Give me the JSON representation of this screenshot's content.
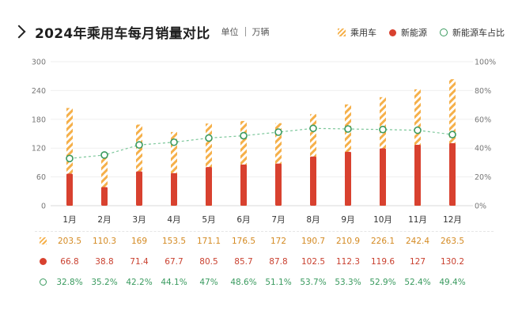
{
  "header": {
    "title": "2024年乘用车每月销量对比",
    "unit_label": "单位",
    "unit_value": "万辆"
  },
  "legend": {
    "total": "乘用车",
    "nev": "新能源",
    "share": "新能源车占比"
  },
  "colors": {
    "total": "#f5b04a",
    "nev": "#d8412f",
    "share": "#3a9a5f"
  },
  "chart_data": {
    "type": "bar",
    "categories": [
      "1月",
      "2月",
      "3月",
      "4月",
      "5月",
      "6月",
      "7月",
      "8月",
      "9月",
      "10月",
      "11月",
      "12月"
    ],
    "series": [
      {
        "name": "乘用车",
        "values": [
          203.5,
          110.3,
          169,
          153.5,
          171.1,
          176.5,
          172,
          190.7,
          210.9,
          226.1,
          242.4,
          263.5
        ]
      },
      {
        "name": "新能源",
        "values": [
          66.8,
          38.8,
          71.4,
          67.7,
          80.5,
          85.7,
          87.8,
          102.5,
          112.3,
          119.6,
          127,
          130.2
        ]
      },
      {
        "name": "新能源车占比",
        "values": [
          32.8,
          35.2,
          42.2,
          44.1,
          47,
          48.6,
          51.1,
          53.7,
          53.3,
          52.9,
          52.4,
          49.4
        ],
        "axis": "right"
      }
    ],
    "table": {
      "total": [
        "203.5",
        "110.3",
        "169",
        "153.5",
        "171.1",
        "176.5",
        "172",
        "190.7",
        "210.9",
        "226.1",
        "242.4",
        "263.5"
      ],
      "nev": [
        "66.8",
        "38.8",
        "71.4",
        "67.7",
        "80.5",
        "85.7",
        "87.8",
        "102.5",
        "112.3",
        "119.6",
        "127",
        "130.2"
      ],
      "share": [
        "32.8%",
        "35.2%",
        "42.2%",
        "44.1%",
        "47%",
        "48.6%",
        "51.1%",
        "53.7%",
        "53.3%",
        "52.9%",
        "52.4%",
        "49.4%"
      ]
    },
    "ylim": [
      0,
      300
    ],
    "y_ticks": [
      "0",
      "60",
      "120",
      "180",
      "240",
      "300"
    ],
    "y2lim": [
      0,
      100
    ],
    "y2_ticks": [
      "0%",
      "20%",
      "40%",
      "60%",
      "80%",
      "100%"
    ],
    "grid": true,
    "legend_position": "top-right"
  }
}
